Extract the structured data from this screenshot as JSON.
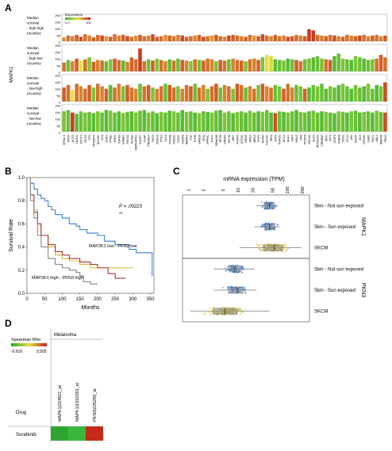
{
  "panels": {
    "A": "A",
    "B": "B",
    "C": "C",
    "D": "D"
  },
  "chart_data": [
    {
      "panel": "A",
      "type": "bar",
      "gene_axis_label": "MAPK1",
      "legend": {
        "title": "Expression",
        "low": "0.0",
        "high": "100"
      },
      "colors": {
        "low": "#33b233",
        "mid": "#e8e040",
        "high": "#c8281e"
      },
      "ylim": [
        0,
        200
      ],
      "yticks": [
        "200",
        "150",
        "100",
        "50",
        "0"
      ],
      "rows": [
        {
          "label": [
            "Median",
            "survival",
            "- high-high",
            "(months)"
          ],
          "values": [
            30,
            45,
            40,
            50,
            35,
            55,
            45,
            30,
            50,
            45,
            40,
            35,
            55,
            45,
            50,
            40,
            35,
            45,
            50,
            40,
            45,
            55,
            35,
            40,
            50,
            45,
            40,
            50,
            45,
            35,
            40,
            45,
            50,
            35,
            40,
            45,
            50,
            40,
            35,
            45,
            50,
            45,
            40,
            35,
            50,
            45,
            40,
            55,
            45,
            40,
            50,
            40,
            45,
            35,
            40,
            50,
            45,
            40,
            95,
            85,
            50,
            45,
            40,
            50,
            45,
            40,
            35,
            50,
            45,
            40,
            45,
            50,
            40,
            45,
            50,
            40,
            45
          ],
          "levels": [
            0.7,
            0.8,
            0.75,
            0.85,
            0.9,
            0.8,
            0.75,
            0.85,
            0.8,
            0.9,
            0.7,
            0.85,
            0.8,
            0.75,
            0.85,
            0.9,
            0.8,
            0.7,
            0.85,
            0.8,
            0.75,
            0.9,
            0.85,
            0.8,
            0.7,
            0.85,
            0.8,
            0.75,
            0.9,
            0.85,
            0.8,
            0.75,
            0.85,
            0.9,
            0.8,
            0.7,
            0.85,
            0.8,
            0.75,
            0.9,
            0.85,
            0.8,
            0.75,
            0.85,
            0.8,
            0.7,
            0.85,
            0.9,
            0.8,
            0.75,
            0.85,
            0.8,
            0.75,
            0.9,
            0.85,
            0.8,
            0.75,
            0.85,
            0.95,
            0.95,
            0.8,
            0.75,
            0.85,
            0.8,
            0.9,
            0.75,
            0.85,
            0.8,
            0.75,
            0.85,
            0.9,
            0.8,
            0.75,
            0.85,
            0.8,
            0.75,
            0.85
          ]
        },
        {
          "label": [
            "Median",
            "survival",
            "- high-low",
            "(months)"
          ],
          "values": [
            70,
            90,
            80,
            100,
            85,
            95,
            110,
            75,
            90,
            85,
            80,
            95,
            100,
            90,
            85,
            75,
            110,
            95,
            180,
            80,
            95,
            85,
            100,
            90,
            80,
            95,
            85,
            100,
            90,
            85,
            80,
            95,
            90,
            85,
            100,
            95,
            80,
            90,
            85,
            95,
            100,
            90,
            85,
            80,
            95,
            100,
            90,
            110,
            130,
            120,
            95,
            90,
            85,
            100,
            95,
            90,
            80,
            95,
            100,
            110,
            120,
            100,
            95,
            90,
            120,
            140,
            100,
            95,
            90,
            120,
            110,
            100,
            90,
            95,
            100,
            130,
            110
          ],
          "levels": [
            0.8,
            0.15,
            0.75,
            0.85,
            0.5,
            0.8,
            0.2,
            0.85,
            0.75,
            0.8,
            0.15,
            0.2,
            0.85,
            0.8,
            0.1,
            0.75,
            0.85,
            0.8,
            0.95,
            0.8,
            0.15,
            0.85,
            0.2,
            0.8,
            0.75,
            0.1,
            0.8,
            0.15,
            0.85,
            0.75,
            0.2,
            0.8,
            0.15,
            0.85,
            0.8,
            0.75,
            0.2,
            0.85,
            0.8,
            0.15,
            0.75,
            0.8,
            0.85,
            0.2,
            0.8,
            0.75,
            0.85,
            0.2,
            0.5,
            0.45,
            0.1,
            0.15,
            0.2,
            0.1,
            0.15,
            0.85,
            0.8,
            0.15,
            0.2,
            0.1,
            0.15,
            0.2,
            0.8,
            0.85,
            0.1,
            0.15,
            0.2,
            0.15,
            0.1,
            0.2,
            0.15,
            0.1,
            0.15,
            0.2,
            0.8,
            0.85,
            0.8
          ]
        },
        {
          "label": [
            "Median",
            "survival",
            "- low-high",
            "(months)"
          ],
          "values": [
            110,
            130,
            90,
            140,
            120,
            100,
            130,
            110,
            140,
            120,
            100,
            130,
            110,
            140,
            120,
            130,
            110,
            100,
            140,
            120,
            130,
            110,
            100,
            120,
            140,
            130,
            110,
            120,
            100,
            130,
            120,
            140,
            110,
            130,
            100,
            120,
            140,
            110,
            130,
            120,
            100,
            140,
            130,
            110,
            120,
            100,
            130,
            140,
            120,
            110,
            130,
            120,
            100,
            140,
            110,
            130,
            120,
            100,
            110,
            130,
            120,
            140,
            100,
            120,
            110,
            130,
            140,
            120,
            100,
            130,
            110,
            120,
            140,
            100,
            130,
            120,
            150
          ],
          "levels": [
            0.85,
            0.8,
            0.5,
            0.8,
            0.75,
            0.8,
            0.85,
            0.2,
            0.8,
            0.75,
            0.85,
            0.1,
            0.8,
            0.75,
            0.2,
            0.85,
            0.8,
            0.75,
            0.15,
            0.8,
            0.85,
            0.2,
            0.75,
            0.8,
            0.15,
            0.85,
            0.8,
            0.2,
            0.75,
            0.8,
            0.85,
            0.15,
            0.8,
            0.75,
            0.2,
            0.8,
            0.85,
            0.15,
            0.75,
            0.8,
            0.2,
            0.85,
            0.8,
            0.15,
            0.75,
            0.8,
            0.2,
            0.85,
            0.75,
            0.8,
            0.15,
            0.2,
            0.85,
            0.8,
            0.75,
            0.15,
            0.2,
            0.85,
            0.1,
            0.15,
            0.2,
            0.15,
            0.1,
            0.2,
            0.15,
            0.1,
            0.2,
            0.15,
            0.1,
            0.2,
            0.15,
            0.1,
            0.2,
            0.15,
            0.1,
            0.2,
            0.9
          ]
        },
        {
          "label": [
            "Median",
            "survival",
            "- low-low",
            "(months)"
          ],
          "values": [
            160,
            170,
            150,
            140,
            160,
            150,
            155,
            145,
            160,
            150,
            170,
            165,
            150,
            160,
            145,
            155,
            160,
            150,
            165,
            170,
            150,
            160,
            145,
            155,
            150,
            165,
            160,
            150,
            170,
            155,
            160,
            150,
            145,
            160,
            155,
            150,
            165,
            170,
            150,
            160,
            145,
            155,
            160,
            150,
            165,
            150,
            160,
            155,
            170,
            150,
            145,
            160,
            155,
            150,
            160,
            170,
            155,
            150,
            160,
            165,
            150,
            160,
            155,
            150,
            145,
            160,
            155,
            150,
            160,
            165,
            150,
            155,
            160,
            150,
            165,
            155,
            150
          ],
          "levels": [
            0.2,
            0.15,
            0.95,
            0.1,
            0.15,
            0.2,
            0.15,
            0.1,
            0.2,
            0.15,
            0.1,
            0.2,
            0.15,
            0.1,
            0.2,
            0.15,
            0.1,
            0.2,
            0.15,
            0.1,
            0.2,
            0.15,
            0.1,
            0.2,
            0.15,
            0.1,
            0.2,
            0.15,
            0.1,
            0.2,
            0.15,
            0.1,
            0.2,
            0.15,
            0.1,
            0.2,
            0.15,
            0.1,
            0.2,
            0.15,
            0.1,
            0.2,
            0.15,
            0.1,
            0.2,
            0.15,
            0.1,
            0.2,
            0.15,
            0.1,
            0.9,
            0.15,
            0.1,
            0.2,
            0.15,
            0.1,
            0.2,
            0.15,
            0.1,
            0.2,
            0.15,
            0.1,
            0.2,
            0.15,
            0.1,
            0.2,
            0.15,
            0.1,
            0.2,
            0.15,
            0.1,
            0.2,
            0.15,
            0.1,
            0.2,
            0.15,
            0.9
          ]
        }
      ],
      "genes": [
        "SPAN-X",
        "PFKP",
        "NCF3",
        "CD3H1",
        "ACHT3",
        "RGS3",
        "TG1",
        "TP53BP2",
        "DDX3N",
        "CD8",
        "EGF1",
        "PTEN",
        "ESR1",
        "TGFB3",
        "CAMK2",
        "PACS2",
        "PLSB1",
        "MAPKAPK1",
        "DUSP7",
        "CHAT",
        "PRDM14",
        "TBCK",
        "CDKN3",
        "PTK2",
        "C1orf",
        "TNTOB",
        "RAD51",
        "CD3G",
        "CASP8",
        "MAPK3",
        "FST",
        "FLNB",
        "GRB10",
        "IRS2",
        "PPP5C",
        "RTN4",
        "SEMA3B",
        "RPS6",
        "CREB1",
        "EIF4E",
        "MET",
        "FGFR3",
        "GSTA1",
        "BRAF",
        "ERK2",
        "MEK1",
        "HSF1",
        "NGFR",
        "TSG101",
        "IER3",
        "ATF2",
        "FOXO3",
        "BCL2",
        "RAF1",
        "VAV1",
        "NRAS",
        "CRK",
        "PDGFB",
        "RASA1",
        "ELK3",
        "RPS6KA3",
        "CREBBP",
        "MYC",
        "TP73",
        "STAT5",
        "IKBKB",
        "SOS1",
        "CD44",
        "JUN",
        "EGFR",
        "CD2",
        "NFKB1",
        "GAB1",
        "SHC1",
        "ABL1",
        "MAPK8",
        "PKN3"
      ]
    },
    {
      "panel": "B",
      "type": "line",
      "xlabel": "Months",
      "ylabel": "Survival Rate",
      "xticks": [
        0,
        50,
        100,
        150,
        200,
        250,
        300,
        350
      ],
      "yticks": [
        0.0,
        0.2,
        0.4,
        0.6,
        0.8,
        1.0
      ],
      "ytick_labels": [
        "0.0",
        "0.2",
        "0.4",
        "0.6",
        "0.8",
        "1.0"
      ],
      "xlim": [
        0,
        360
      ],
      "ylim": [
        0,
        1.0
      ],
      "p_value": "P = .00223",
      "stars": "**",
      "annotations": {
        "low_low": "MAP2K1 low - PKN3 low",
        "high_high": "MAP2K1 high - PKN3 high"
      },
      "series": [
        {
          "color": "#3a7fd5",
          "x": [
            0,
            10,
            20,
            30,
            40,
            50,
            60,
            70,
            80,
            100,
            120,
            140,
            150,
            170,
            200,
            220,
            250,
            290,
            310,
            340,
            355
          ],
          "y": [
            1.0,
            0.95,
            0.9,
            0.85,
            0.82,
            0.8,
            0.75,
            0.72,
            0.68,
            0.65,
            0.6,
            0.58,
            0.55,
            0.52,
            0.5,
            0.45,
            0.42,
            0.38,
            0.35,
            0.35,
            0.15
          ]
        },
        {
          "color": "#d9b733",
          "x": [
            0,
            10,
            20,
            30,
            40,
            60,
            80,
            100,
            120,
            150,
            180,
            200,
            250,
            300
          ],
          "y": [
            1.0,
            0.85,
            0.72,
            0.6,
            0.5,
            0.4,
            0.33,
            0.3,
            0.28,
            0.25,
            0.22,
            0.22,
            0.22,
            0.22
          ]
        },
        {
          "color": "#a8332e",
          "x": [
            0,
            10,
            20,
            30,
            40,
            60,
            80,
            100,
            120,
            150,
            180,
            200,
            230,
            250,
            280
          ],
          "y": [
            1.0,
            0.85,
            0.7,
            0.6,
            0.5,
            0.42,
            0.36,
            0.33,
            0.3,
            0.27,
            0.25,
            0.22,
            0.17,
            0.13,
            0.13
          ]
        },
        {
          "color": "#888888",
          "x": [
            0,
            10,
            20,
            30,
            40,
            60,
            80,
            100,
            120,
            140,
            150,
            160,
            170,
            180,
            200
          ],
          "y": [
            1.0,
            0.8,
            0.65,
            0.5,
            0.4,
            0.3,
            0.25,
            0.22,
            0.2,
            0.18,
            0.15,
            0.1,
            0.1,
            0.08,
            0.08
          ]
        }
      ]
    },
    {
      "panel": "C",
      "type": "scatter",
      "title": "mRNA expression (TPM)",
      "xscale": "log",
      "xticks": [
        "1",
        "2",
        "5",
        "10",
        "20",
        "50",
        "100",
        "200"
      ],
      "groups": [
        {
          "gene": "MAPK1",
          "rows": [
            {
              "label": "Skin - Not sun exposed",
              "color": "#3a7fd5",
              "median": 40,
              "q1": 32,
              "q3": 50,
              "min": 22,
              "max": 60,
              "n": 80
            },
            {
              "label": "Skin - Sun exposed",
              "color": "#3a7fd5",
              "median": 40,
              "q1": 32,
              "q3": 52,
              "min": 20,
              "max": 65,
              "n": 80
            },
            {
              "label": "SKCM",
              "color": "#d4b32c",
              "median": 50,
              "q1": 30,
              "q3": 75,
              "min": 10,
              "max": 180,
              "n": 150
            }
          ]
        },
        {
          "gene": "PKN3",
          "rows": [
            {
              "label": "Skin - Not sun exposed",
              "color": "#3a7fd5",
              "median": 8,
              "q1": 6,
              "q3": 11,
              "min": 3,
              "max": 20,
              "n": 80
            },
            {
              "label": "Skin - Sun exposed",
              "color": "#3a7fd5",
              "median": 9,
              "q1": 6,
              "q3": 12,
              "min": 3,
              "max": 22,
              "n": 80
            },
            {
              "label": "SKCM",
              "color": "#d4b32c",
              "median": 5,
              "q1": 3,
              "q3": 9,
              "min": 1,
              "max": 40,
              "n": 150
            }
          ]
        }
      ]
    },
    {
      "panel": "D",
      "type": "heatmap",
      "legend": {
        "title": "Spearman Rho",
        "min": "-0.610",
        "max": "0.505"
      },
      "header": "Melanoma",
      "row_header": "Drug",
      "rows": [
        "Sorafenib"
      ],
      "columns": [
        "MAPK1|224821_at",
        "MAPK1|1552263_at",
        "PKN3|226299_at"
      ],
      "values": [
        [
          -0.61,
          -0.55,
          0.505
        ]
      ],
      "colors": [
        "#2fa52f",
        "#3bb83b",
        "#c62a1a"
      ]
    }
  ]
}
